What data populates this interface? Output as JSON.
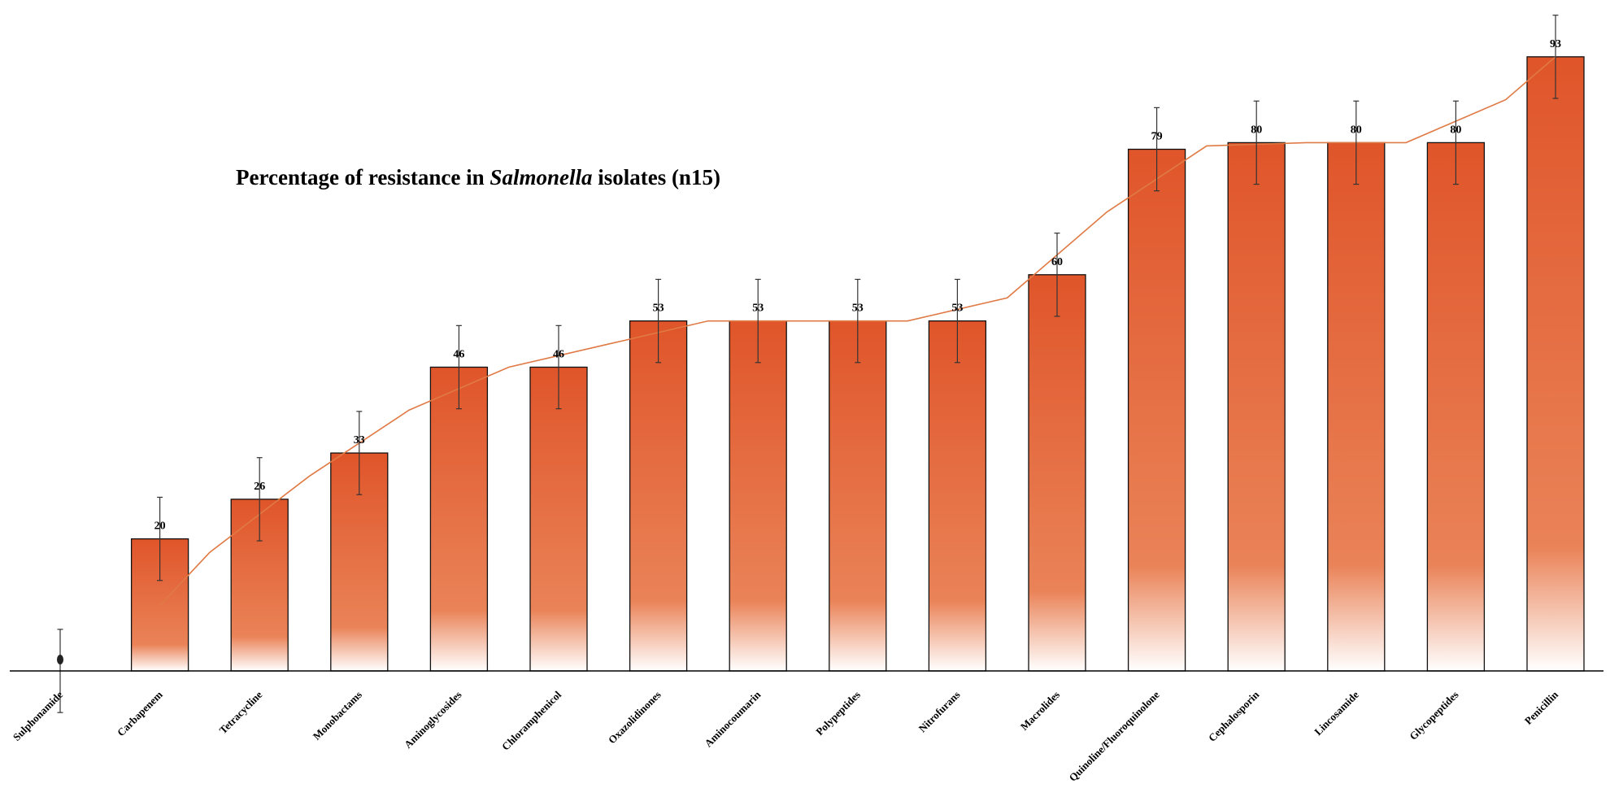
{
  "chart_data": {
    "type": "bar",
    "title_before": "Percentage of resistance in ",
    "title_italic": "Salmonella",
    "title_after": " isolates (n15)",
    "categories": [
      "Sulphonamide",
      "Carbapenem",
      "Tetracycline",
      "Monobactams",
      "Aminoglycosides",
      "Chloramphenicol",
      "Oxazolidinones",
      "Aminocoumarin",
      "Polypeptides",
      "Nitrofurans",
      "Macrolides",
      "Quinoline/Fluoroquinolone",
      "Cephalosporin",
      "Lincosamide",
      "Glycopeptides",
      "Penicillin"
    ],
    "values": [
      0,
      20,
      26,
      33,
      46,
      46,
      53,
      53,
      53,
      53,
      60,
      79,
      80,
      80,
      80,
      93
    ],
    "value_labels": [
      "",
      "20",
      "26",
      "33",
      "46",
      "46",
      "53",
      "53",
      "53",
      "53",
      "60",
      "79",
      "80",
      "80",
      "80",
      "93"
    ],
    "error": 6.3,
    "ylim": [
      0,
      100
    ],
    "trendline": true,
    "colors": {
      "bar_top": "#e0552a",
      "bar_mid": "#ea8358",
      "bar_bottom": "#ffffff",
      "trend": "#e07a45",
      "axis": "#000000",
      "error": "#333333"
    }
  }
}
